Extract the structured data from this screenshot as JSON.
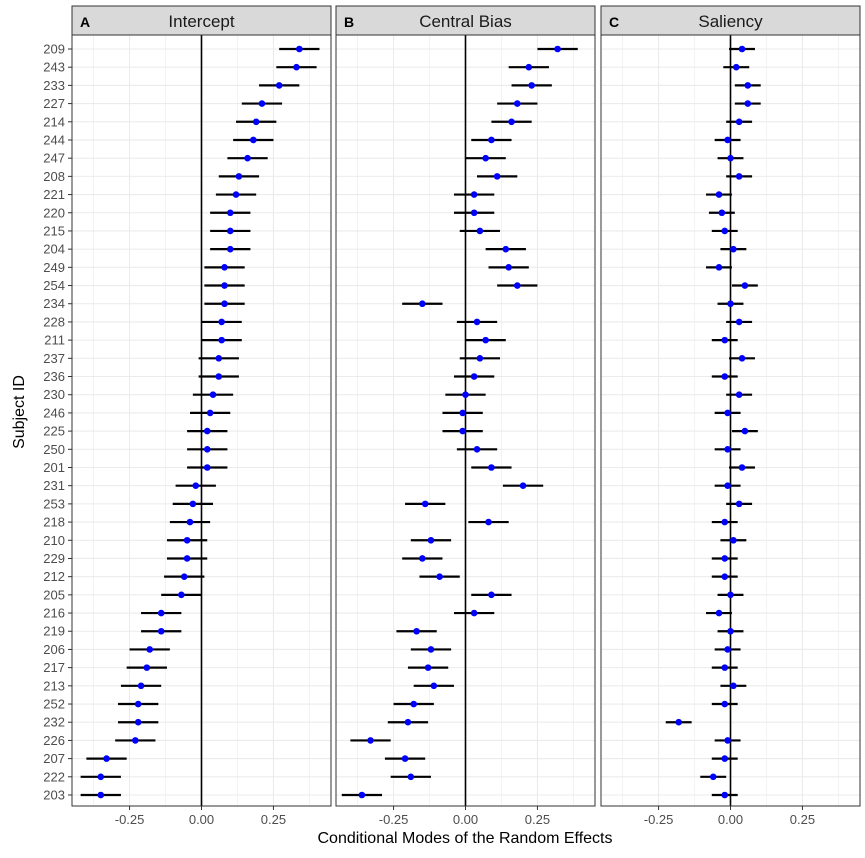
{
  "figure": {
    "xlabel": "Conditional Modes of the Random Effects",
    "ylabel": "Subject ID"
  },
  "style": {
    "point_color": "#0000ff",
    "errorbar_color": "#000000",
    "strip_fill": "#d9d9d9",
    "grid_color": "#ebebeb"
  },
  "chart_data": {
    "type": "scatter",
    "subjects": [
      "209",
      "243",
      "233",
      "227",
      "214",
      "244",
      "247",
      "208",
      "221",
      "220",
      "215",
      "204",
      "249",
      "254",
      "234",
      "228",
      "211",
      "237",
      "236",
      "230",
      "246",
      "225",
      "250",
      "201",
      "231",
      "253",
      "218",
      "210",
      "229",
      "212",
      "205",
      "216",
      "219",
      "206",
      "217",
      "213",
      "252",
      "232",
      "226",
      "207",
      "222",
      "203"
    ],
    "xlim": [
      -0.45,
      0.45
    ],
    "xticks": [
      -0.25,
      0.0,
      0.25
    ],
    "xtick_labels": [
      "-0.25",
      "0.00",
      "0.25"
    ],
    "grid": true,
    "vline": 0,
    "panels": [
      {
        "tag": "A",
        "title": "Intercept",
        "values": [
          0.34,
          0.33,
          0.27,
          0.21,
          0.19,
          0.18,
          0.16,
          0.13,
          0.12,
          0.1,
          0.1,
          0.1,
          0.08,
          0.08,
          0.08,
          0.07,
          0.07,
          0.06,
          0.06,
          0.04,
          0.03,
          0.02,
          0.02,
          0.02,
          -0.02,
          -0.03,
          -0.04,
          -0.05,
          -0.05,
          -0.06,
          -0.07,
          -0.14,
          -0.14,
          -0.18,
          -0.19,
          -0.21,
          -0.22,
          -0.22,
          -0.23,
          -0.33,
          -0.35,
          -0.35
        ],
        "half_width": 0.07
      },
      {
        "tag": "B",
        "title": "Central Bias",
        "values": [
          0.32,
          0.22,
          0.23,
          0.18,
          0.16,
          0.09,
          0.07,
          0.11,
          0.03,
          0.03,
          0.05,
          0.14,
          0.15,
          0.18,
          -0.15,
          0.04,
          0.07,
          0.05,
          0.03,
          0.0,
          -0.01,
          -0.01,
          0.04,
          0.09,
          0.2,
          -0.14,
          0.08,
          -0.12,
          -0.15,
          -0.09,
          0.09,
          0.03,
          -0.17,
          -0.12,
          -0.13,
          -0.11,
          -0.18,
          -0.2,
          -0.33,
          -0.21,
          -0.19,
          -0.36
        ],
        "half_width": 0.07
      },
      {
        "tag": "C",
        "title": "Saliency",
        "values": [
          0.04,
          0.02,
          0.06,
          0.06,
          0.03,
          -0.01,
          0.0,
          0.03,
          -0.04,
          -0.03,
          -0.02,
          0.01,
          -0.04,
          0.05,
          0.0,
          0.03,
          -0.02,
          0.04,
          -0.02,
          0.03,
          -0.01,
          0.05,
          -0.01,
          0.04,
          -0.01,
          0.03,
          -0.02,
          0.01,
          -0.02,
          -0.02,
          0.0,
          -0.04,
          0.0,
          -0.01,
          -0.02,
          0.01,
          -0.02,
          -0.18,
          -0.01,
          -0.02,
          -0.06,
          -0.02
        ],
        "half_width": 0.045
      }
    ]
  }
}
